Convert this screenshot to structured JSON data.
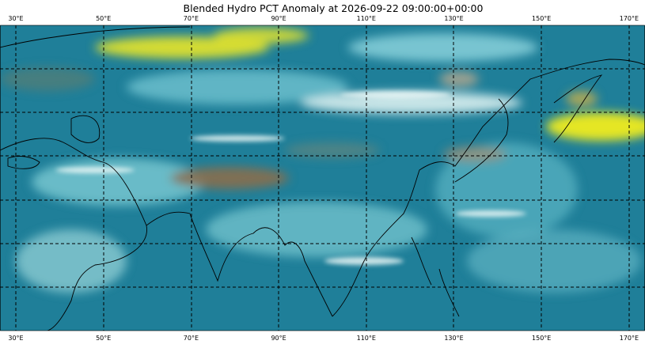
{
  "title": "Blended Hydro PCT Anomaly at 2026-09-22 09:00:00+00:00",
  "top_labels": [
    "30°E",
    "50°E",
    "70°E",
    "90°E",
    "110°E",
    "130°E",
    "150°E",
    "170°E"
  ],
  "bottom_labels": [
    "30°E",
    "50°E",
    "70°E",
    "90°E",
    "110°E",
    "130°E",
    "150°E",
    "170°E"
  ]
}
